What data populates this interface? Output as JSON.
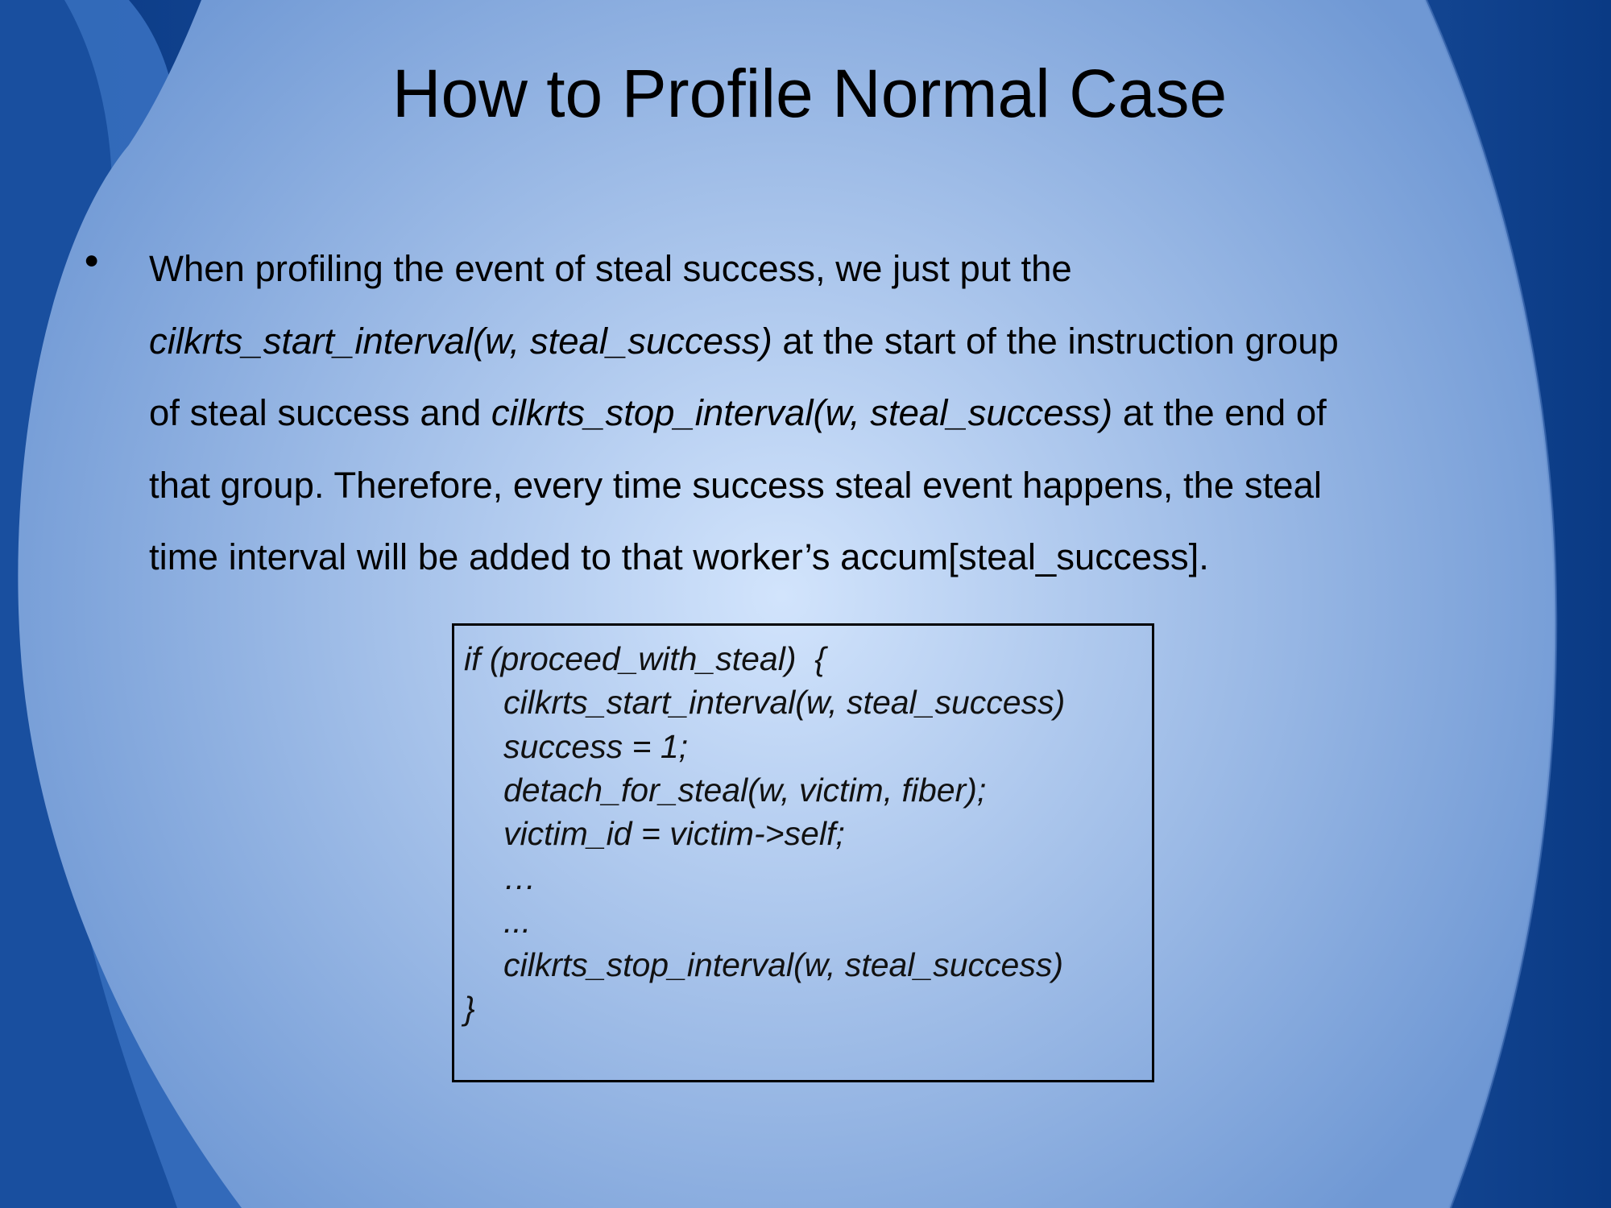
{
  "slide": {
    "title": "How to Profile Normal Case",
    "bullet_marker": "●",
    "paragraph_lines": [
      [
        {
          "text": "When profiling the event of steal success, we just put the",
          "italic": false
        }
      ],
      [
        {
          "text": "cilkrts_start_interval(w, steal_success)",
          "italic": true
        },
        {
          "text": " at the start of the instruction group",
          "italic": false
        }
      ],
      [
        {
          "text": "of steal success and ",
          "italic": false
        },
        {
          "text": "cilkrts_stop_interval(w, steal_success)",
          "italic": true
        },
        {
          "text": " at the end of",
          "italic": false
        }
      ],
      [
        {
          "text": "that group. Therefore, every time success steal event happens, the steal",
          "italic": false
        }
      ],
      [
        {
          "text": "time interval will be added to that worker’s accum[steal_success].",
          "italic": false
        }
      ]
    ],
    "code": [
      "if (proceed_with_steal)  {",
      "cilkrts_start_interval(w, steal_success)",
      "success = 1;",
      "detach_for_steal(w, victim, fiber);",
      "victim_id = victim->self;",
      "…",
      "...",
      "cilkrts_stop_interval(w, steal_success)",
      "}"
    ]
  },
  "colors": {
    "center_glow": "#cfe2fb",
    "mid_blue": "#86a9db",
    "edge_blue": "#0c3f8e",
    "text": "#000000"
  }
}
